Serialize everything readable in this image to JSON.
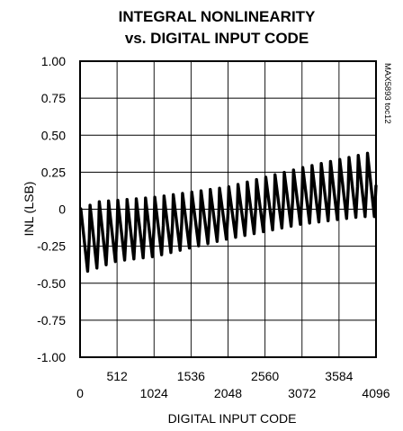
{
  "chart_data": {
    "type": "line",
    "title_line1": "INTEGRAL NONLINEARITY",
    "title_line2": "vs. DIGITAL INPUT CODE",
    "xlabel": "DIGITAL INPUT CODE",
    "ylabel": "INL (LSB)",
    "note": "MAX5893 toc12",
    "xlim": [
      0,
      4096
    ],
    "ylim": [
      -1.0,
      1.0
    ],
    "grid": true,
    "x_ticks": [
      0,
      512,
      1024,
      1536,
      2048,
      2560,
      3072,
      3584,
      4096
    ],
    "x_tick_labels": [
      "0",
      "512",
      "1024",
      "1536",
      "2048",
      "2560",
      "3072",
      "3584",
      "4096"
    ],
    "y_ticks": [
      1.0,
      0.75,
      0.5,
      0.25,
      0,
      -0.25,
      -0.5,
      -0.75,
      -1.0
    ],
    "y_tick_labels": [
      "1.00",
      "0.75",
      "0.50",
      "0.25",
      "0",
      "-0.25",
      "-0.50",
      "-0.75",
      "-1.00"
    ],
    "series": [
      {
        "x_start": 0,
        "x_end": 4096,
        "sawtooth_teeth": 32,
        "peaks_approx": [
          [
            0,
            0.0
          ],
          [
            256,
            0.05
          ],
          [
            1024,
            0.08
          ],
          [
            2048,
            0.15
          ],
          [
            3072,
            0.28
          ],
          [
            4000,
            0.38
          ]
        ],
        "troughs_approx": [
          [
            100,
            -0.42
          ],
          [
            512,
            -0.35
          ],
          [
            1024,
            -0.32
          ],
          [
            2048,
            -0.2
          ],
          [
            3072,
            -0.1
          ],
          [
            3900,
            -0.05
          ]
        ],
        "color": "#000000"
      }
    ]
  }
}
